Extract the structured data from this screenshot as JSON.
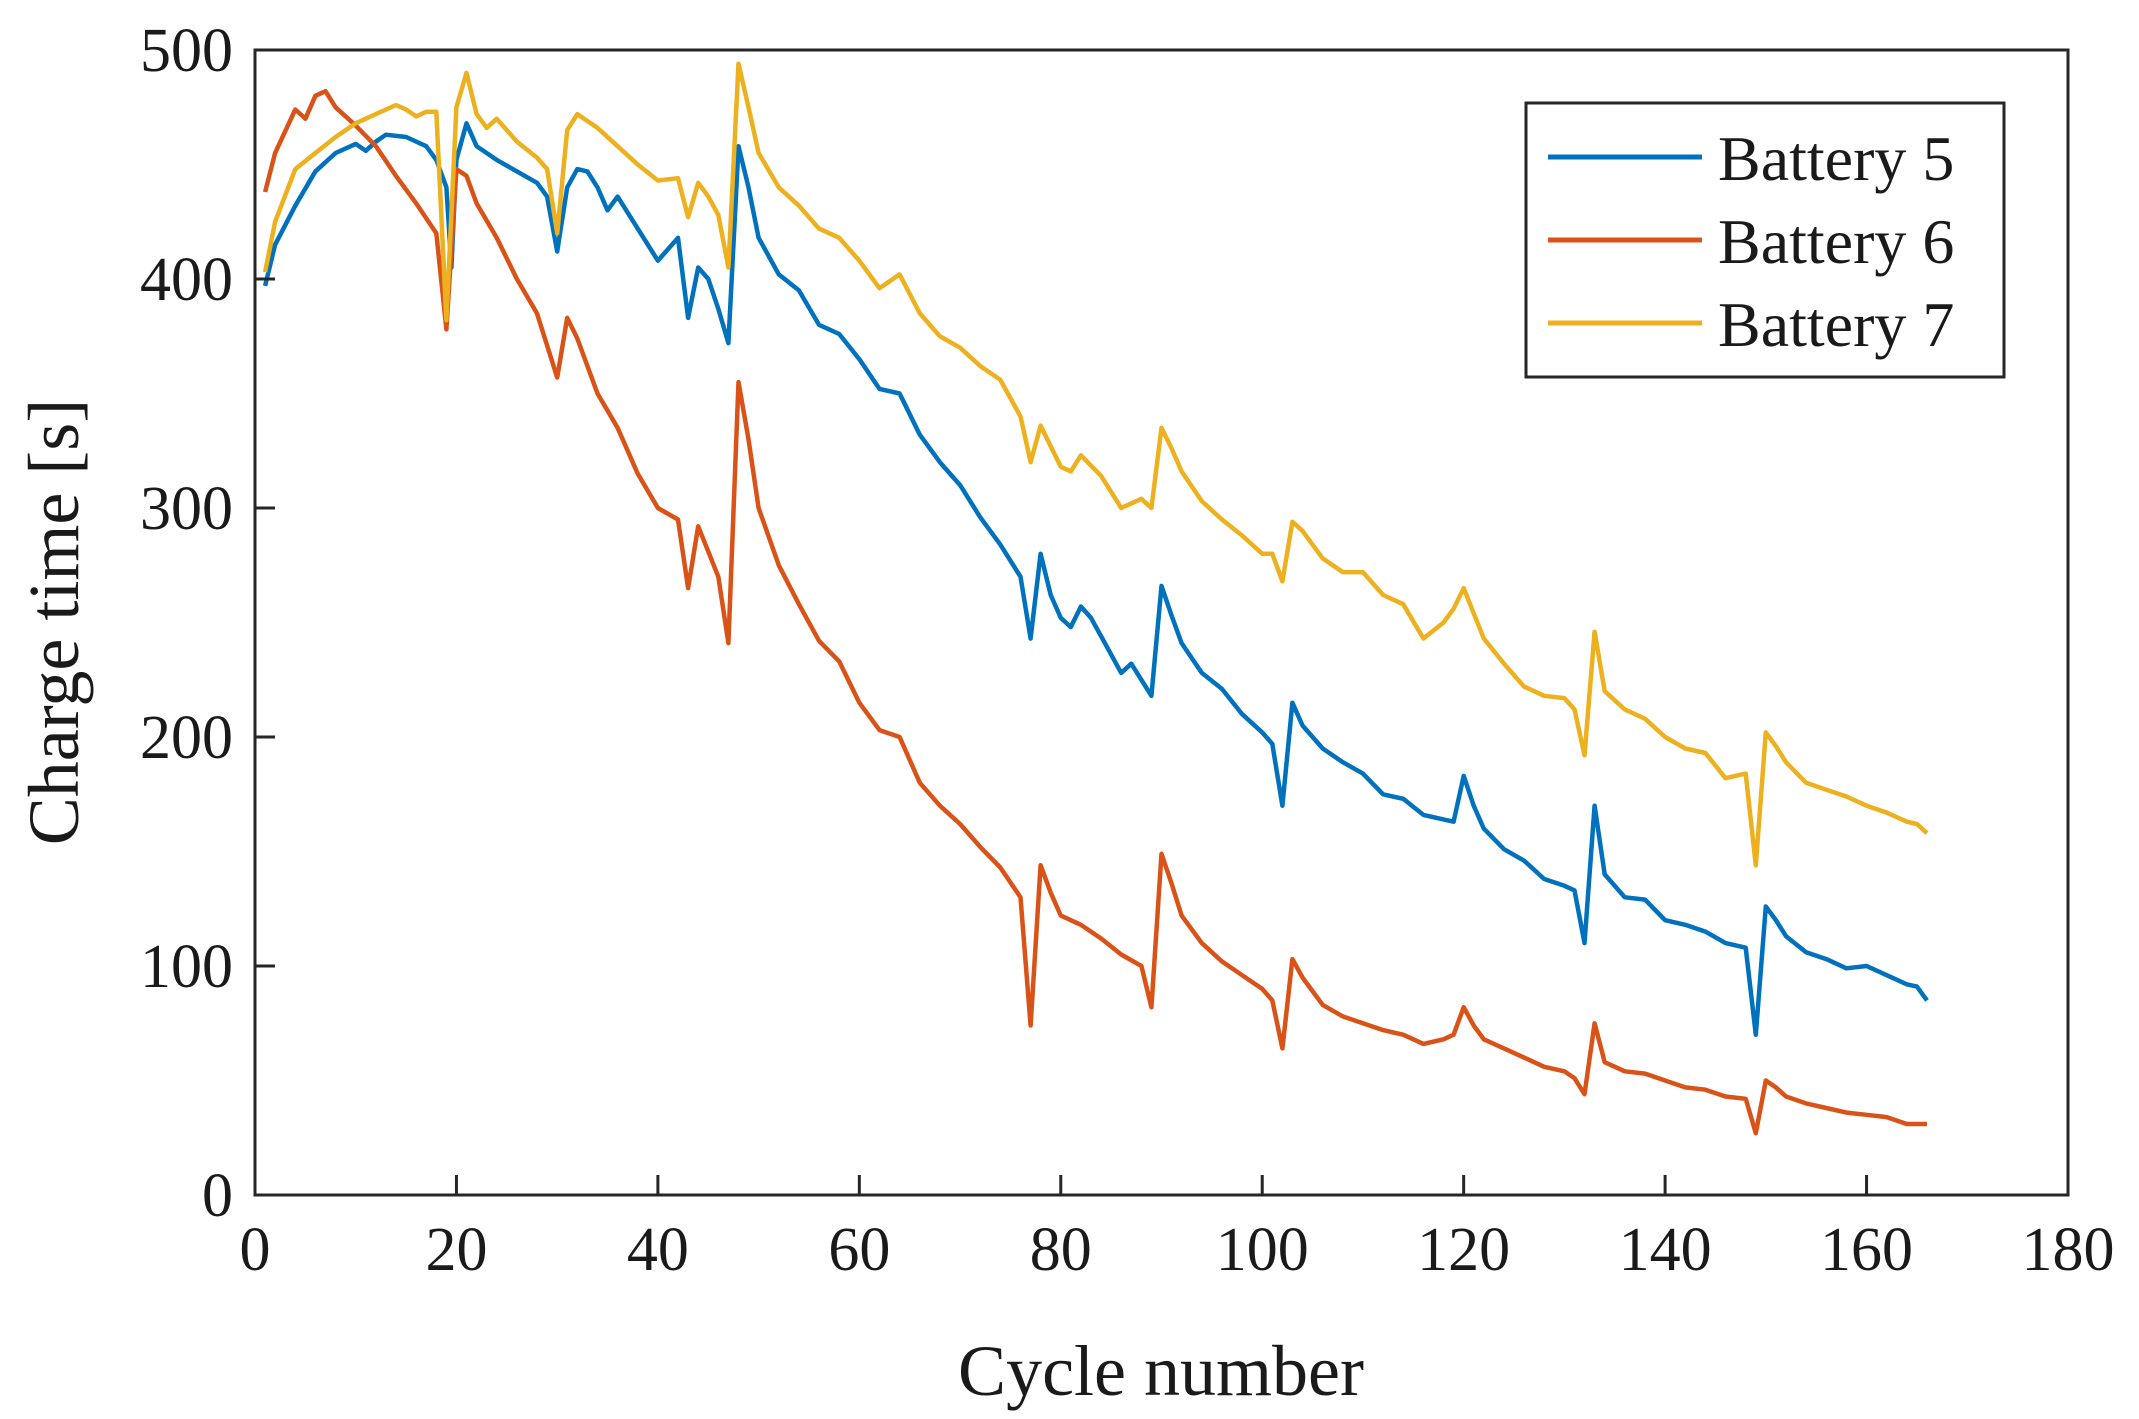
{
  "chart_data": {
    "type": "line",
    "title": "",
    "xlabel": "Cycle number",
    "ylabel": "Charge time [s]",
    "xlim": [
      0,
      180
    ],
    "ylim": [
      0,
      500
    ],
    "xticks": [
      0,
      20,
      40,
      60,
      80,
      100,
      120,
      140,
      160,
      180
    ],
    "yticks": [
      0,
      100,
      200,
      300,
      400,
      500
    ],
    "xtick_labels": [
      "0",
      "20",
      "40",
      "60",
      "80",
      "100",
      "120",
      "140",
      "160",
      "180"
    ],
    "ytick_labels": [
      "0",
      "100",
      "200",
      "300",
      "400",
      "500"
    ],
    "grid": false,
    "legend_position": "top-right",
    "series": [
      {
        "name": "Battery 5",
        "color": "#0072BD",
        "points": [
          [
            1,
            397
          ],
          [
            2,
            415
          ],
          [
            4,
            432
          ],
          [
            6,
            447
          ],
          [
            8,
            455
          ],
          [
            10,
            459
          ],
          [
            11,
            456
          ],
          [
            12,
            460
          ],
          [
            13,
            463
          ],
          [
            15,
            462
          ],
          [
            17,
            458
          ],
          [
            18,
            452
          ],
          [
            19,
            440
          ],
          [
            19.5,
            405
          ],
          [
            20,
            452
          ],
          [
            21,
            468
          ],
          [
            22,
            458
          ],
          [
            24,
            452
          ],
          [
            26,
            447
          ],
          [
            28,
            442
          ],
          [
            29,
            436
          ],
          [
            30,
            412
          ],
          [
            31,
            440
          ],
          [
            32,
            448
          ],
          [
            33,
            447
          ],
          [
            34,
            440
          ],
          [
            35,
            430
          ],
          [
            36,
            436
          ],
          [
            38,
            422
          ],
          [
            40,
            408
          ],
          [
            42,
            418
          ],
          [
            43,
            383
          ],
          [
            44,
            405
          ],
          [
            45,
            400
          ],
          [
            46,
            387
          ],
          [
            47,
            372
          ],
          [
            48,
            458
          ],
          [
            49,
            440
          ],
          [
            50,
            418
          ],
          [
            52,
            402
          ],
          [
            54,
            395
          ],
          [
            56,
            380
          ],
          [
            58,
            376
          ],
          [
            60,
            365
          ],
          [
            62,
            352
          ],
          [
            64,
            350
          ],
          [
            66,
            332
          ],
          [
            68,
            320
          ],
          [
            70,
            310
          ],
          [
            72,
            296
          ],
          [
            74,
            284
          ],
          [
            76,
            270
          ],
          [
            77,
            243
          ],
          [
            78,
            280
          ],
          [
            79,
            262
          ],
          [
            80,
            252
          ],
          [
            81,
            248
          ],
          [
            82,
            257
          ],
          [
            83,
            252
          ],
          [
            84,
            244
          ],
          [
            86,
            228
          ],
          [
            87,
            232
          ],
          [
            88,
            225
          ],
          [
            89,
            218
          ],
          [
            90,
            266
          ],
          [
            91,
            253
          ],
          [
            92,
            241
          ],
          [
            94,
            228
          ],
          [
            96,
            221
          ],
          [
            98,
            210
          ],
          [
            100,
            202
          ],
          [
            101,
            197
          ],
          [
            102,
            170
          ],
          [
            103,
            215
          ],
          [
            104,
            205
          ],
          [
            106,
            195
          ],
          [
            108,
            189
          ],
          [
            110,
            184
          ],
          [
            112,
            175
          ],
          [
            114,
            173
          ],
          [
            116,
            166
          ],
          [
            118,
            164
          ],
          [
            119,
            163
          ],
          [
            120,
            183
          ],
          [
            121,
            170
          ],
          [
            122,
            160
          ],
          [
            124,
            151
          ],
          [
            126,
            146
          ],
          [
            128,
            138
          ],
          [
            130,
            135
          ],
          [
            131,
            133
          ],
          [
            132,
            110
          ],
          [
            133,
            170
          ],
          [
            134,
            140
          ],
          [
            136,
            130
          ],
          [
            138,
            129
          ],
          [
            140,
            120
          ],
          [
            142,
            118
          ],
          [
            144,
            115
          ],
          [
            146,
            110
          ],
          [
            148,
            108
          ],
          [
            149,
            70
          ],
          [
            150,
            126
          ],
          [
            151,
            120
          ],
          [
            152,
            113
          ],
          [
            154,
            106
          ],
          [
            156,
            103
          ],
          [
            158,
            99
          ],
          [
            160,
            100
          ],
          [
            162,
            96
          ],
          [
            164,
            92
          ],
          [
            165,
            91
          ],
          [
            166,
            85
          ]
        ]
      },
      {
        "name": "Battery 6",
        "color": "#D95319",
        "points": [
          [
            1,
            438
          ],
          [
            2,
            455
          ],
          [
            4,
            474
          ],
          [
            5,
            470
          ],
          [
            6,
            480
          ],
          [
            7,
            482
          ],
          [
            8,
            475
          ],
          [
            10,
            467
          ],
          [
            12,
            458
          ],
          [
            14,
            445
          ],
          [
            16,
            433
          ],
          [
            18,
            420
          ],
          [
            19,
            378
          ],
          [
            20,
            448
          ],
          [
            21,
            445
          ],
          [
            22,
            433
          ],
          [
            24,
            418
          ],
          [
            26,
            400
          ],
          [
            28,
            385
          ],
          [
            30,
            357
          ],
          [
            31,
            383
          ],
          [
            32,
            374
          ],
          [
            34,
            350
          ],
          [
            36,
            335
          ],
          [
            38,
            315
          ],
          [
            40,
            300
          ],
          [
            42,
            295
          ],
          [
            43,
            265
          ],
          [
            44,
            292
          ],
          [
            46,
            270
          ],
          [
            47,
            241
          ],
          [
            48,
            355
          ],
          [
            49,
            330
          ],
          [
            50,
            300
          ],
          [
            52,
            275
          ],
          [
            54,
            258
          ],
          [
            56,
            242
          ],
          [
            58,
            233
          ],
          [
            60,
            215
          ],
          [
            62,
            203
          ],
          [
            64,
            200
          ],
          [
            66,
            180
          ],
          [
            68,
            170
          ],
          [
            70,
            162
          ],
          [
            72,
            152
          ],
          [
            74,
            143
          ],
          [
            76,
            130
          ],
          [
            77,
            74
          ],
          [
            78,
            144
          ],
          [
            79,
            132
          ],
          [
            80,
            122
          ],
          [
            82,
            118
          ],
          [
            84,
            112
          ],
          [
            86,
            105
          ],
          [
            88,
            100
          ],
          [
            89,
            82
          ],
          [
            90,
            149
          ],
          [
            91,
            136
          ],
          [
            92,
            122
          ],
          [
            94,
            110
          ],
          [
            96,
            102
          ],
          [
            98,
            96
          ],
          [
            100,
            90
          ],
          [
            101,
            85
          ],
          [
            102,
            64
          ],
          [
            103,
            103
          ],
          [
            104,
            95
          ],
          [
            106,
            83
          ],
          [
            108,
            78
          ],
          [
            110,
            75
          ],
          [
            112,
            72
          ],
          [
            114,
            70
          ],
          [
            116,
            66
          ],
          [
            118,
            68
          ],
          [
            119,
            70
          ],
          [
            120,
            82
          ],
          [
            121,
            74
          ],
          [
            122,
            68
          ],
          [
            124,
            64
          ],
          [
            126,
            60
          ],
          [
            128,
            56
          ],
          [
            130,
            54
          ],
          [
            131,
            51
          ],
          [
            132,
            44
          ],
          [
            133,
            75
          ],
          [
            134,
            58
          ],
          [
            136,
            54
          ],
          [
            138,
            53
          ],
          [
            140,
            50
          ],
          [
            142,
            47
          ],
          [
            144,
            46
          ],
          [
            146,
            43
          ],
          [
            148,
            42
          ],
          [
            149,
            27
          ],
          [
            150,
            50
          ],
          [
            151,
            47
          ],
          [
            152,
            43
          ],
          [
            154,
            40
          ],
          [
            156,
            38
          ],
          [
            158,
            36
          ],
          [
            160,
            35
          ],
          [
            162,
            34
          ],
          [
            164,
            31
          ],
          [
            166,
            31
          ]
        ]
      },
      {
        "name": "Battery 7",
        "color": "#EDB120",
        "points": [
          [
            1,
            403
          ],
          [
            2,
            425
          ],
          [
            4,
            448
          ],
          [
            6,
            455
          ],
          [
            8,
            462
          ],
          [
            10,
            468
          ],
          [
            12,
            472
          ],
          [
            14,
            476
          ],
          [
            15,
            474
          ],
          [
            16,
            471
          ],
          [
            17,
            473
          ],
          [
            18,
            473
          ],
          [
            19,
            382
          ],
          [
            20,
            475
          ],
          [
            21,
            490
          ],
          [
            22,
            472
          ],
          [
            23,
            466
          ],
          [
            24,
            470
          ],
          [
            26,
            460
          ],
          [
            28,
            453
          ],
          [
            29,
            448
          ],
          [
            30,
            420
          ],
          [
            31,
            465
          ],
          [
            32,
            472
          ],
          [
            34,
            466
          ],
          [
            36,
            458
          ],
          [
            38,
            450
          ],
          [
            40,
            443
          ],
          [
            42,
            444
          ],
          [
            43,
            427
          ],
          [
            44,
            442
          ],
          [
            45,
            436
          ],
          [
            46,
            428
          ],
          [
            47,
            405
          ],
          [
            48,
            494
          ],
          [
            49,
            475
          ],
          [
            50,
            455
          ],
          [
            52,
            440
          ],
          [
            54,
            432
          ],
          [
            56,
            422
          ],
          [
            58,
            418
          ],
          [
            60,
            408
          ],
          [
            62,
            396
          ],
          [
            64,
            402
          ],
          [
            66,
            385
          ],
          [
            68,
            375
          ],
          [
            70,
            370
          ],
          [
            72,
            362
          ],
          [
            74,
            356
          ],
          [
            76,
            340
          ],
          [
            77,
            320
          ],
          [
            78,
            336
          ],
          [
            79,
            327
          ],
          [
            80,
            318
          ],
          [
            81,
            316
          ],
          [
            82,
            323
          ],
          [
            84,
            314
          ],
          [
            86,
            300
          ],
          [
            87,
            302
          ],
          [
            88,
            304
          ],
          [
            89,
            300
          ],
          [
            90,
            335
          ],
          [
            91,
            326
          ],
          [
            92,
            316
          ],
          [
            94,
            303
          ],
          [
            96,
            295
          ],
          [
            98,
            288
          ],
          [
            100,
            280
          ],
          [
            101,
            280
          ],
          [
            102,
            268
          ],
          [
            103,
            294
          ],
          [
            104,
            290
          ],
          [
            106,
            278
          ],
          [
            108,
            272
          ],
          [
            110,
            272
          ],
          [
            112,
            262
          ],
          [
            114,
            258
          ],
          [
            116,
            243
          ],
          [
            118,
            250
          ],
          [
            119,
            256
          ],
          [
            120,
            265
          ],
          [
            121,
            254
          ],
          [
            122,
            243
          ],
          [
            124,
            232
          ],
          [
            126,
            222
          ],
          [
            128,
            218
          ],
          [
            130,
            217
          ],
          [
            131,
            212
          ],
          [
            132,
            192
          ],
          [
            133,
            246
          ],
          [
            134,
            220
          ],
          [
            136,
            212
          ],
          [
            138,
            208
          ],
          [
            140,
            200
          ],
          [
            142,
            195
          ],
          [
            144,
            193
          ],
          [
            146,
            182
          ],
          [
            148,
            184
          ],
          [
            149,
            144
          ],
          [
            150,
            202
          ],
          [
            151,
            196
          ],
          [
            152,
            189
          ],
          [
            154,
            180
          ],
          [
            156,
            177
          ],
          [
            158,
            174
          ],
          [
            160,
            170
          ],
          [
            162,
            167
          ],
          [
            164,
            163
          ],
          [
            165,
            162
          ],
          [
            166,
            158
          ]
        ]
      }
    ]
  }
}
